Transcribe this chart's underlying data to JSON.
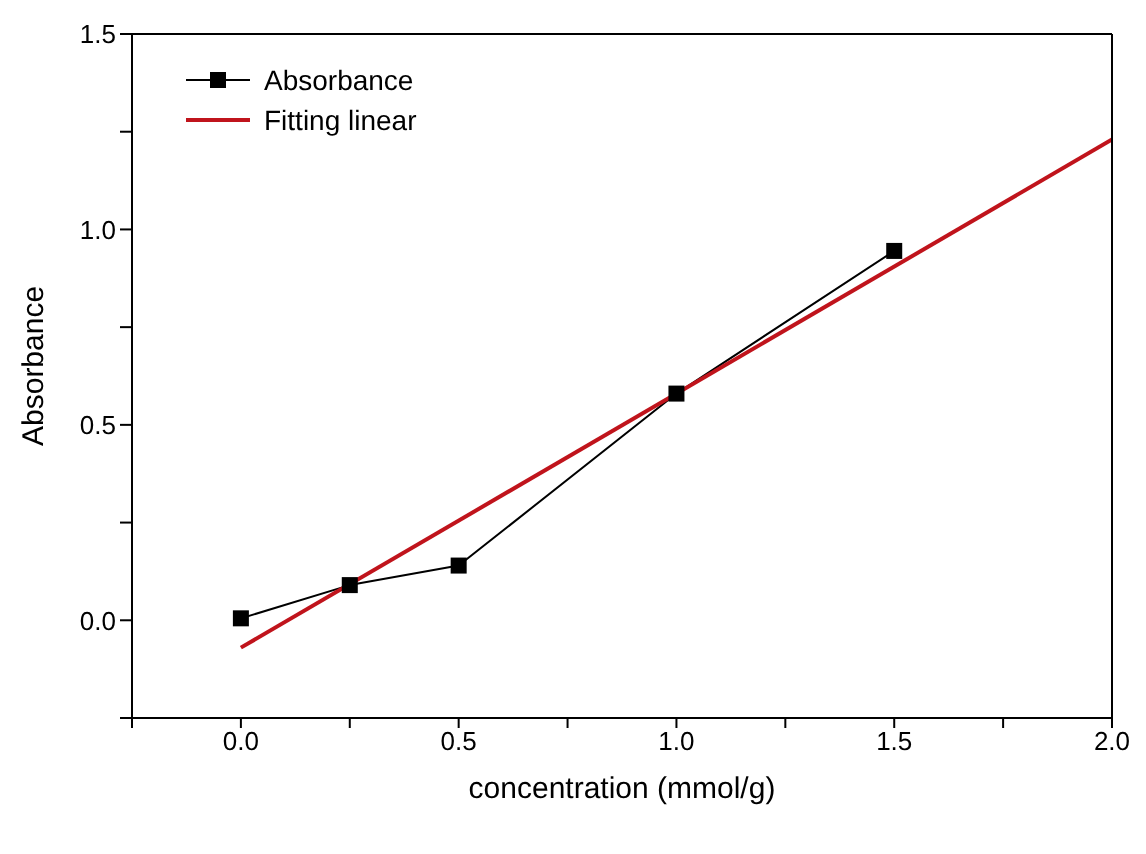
{
  "chart_data": {
    "type": "line",
    "xlabel": "concentration (mmol/g)",
    "ylabel": "Absorbance",
    "xlim": [
      -0.25,
      2.0
    ],
    "ylim": [
      -0.25,
      1.5
    ],
    "xticks": [
      {
        "value": -0.25,
        "label": null
      },
      {
        "value": 0,
        "label": "0.0"
      },
      {
        "value": 0.25,
        "label": null
      },
      {
        "value": 0.5,
        "label": "0.5"
      },
      {
        "value": 0.75,
        "label": null
      },
      {
        "value": 1,
        "label": "1.0"
      },
      {
        "value": 1.25,
        "label": null
      },
      {
        "value": 1.5,
        "label": "1.5"
      },
      {
        "value": 1.75,
        "label": null
      },
      {
        "value": 2,
        "label": "2.0"
      }
    ],
    "yticks": [
      {
        "value": -0.25,
        "label": null
      },
      {
        "value": 0,
        "label": "0.0"
      },
      {
        "value": 0.25,
        "label": null
      },
      {
        "value": 0.5,
        "label": "0.5"
      },
      {
        "value": 0.75,
        "label": null
      },
      {
        "value": 1,
        "label": "1.0"
      },
      {
        "value": 1.25,
        "label": null
      },
      {
        "value": 1.5,
        "label": "1.5"
      }
    ],
    "legend": "top left",
    "series": [
      {
        "name": "Absorbance",
        "color": "#000000",
        "marker": "square",
        "x": [
          0,
          0.25,
          0.5,
          1.0,
          1.5
        ],
        "values": [
          0.005,
          0.09,
          0.14,
          0.58,
          0.945
        ]
      },
      {
        "name": "Fitting linear",
        "color": "#c0141c",
        "marker": "none",
        "x": [
          0,
          2
        ],
        "values": [
          -0.07,
          1.23
        ]
      }
    ]
  }
}
